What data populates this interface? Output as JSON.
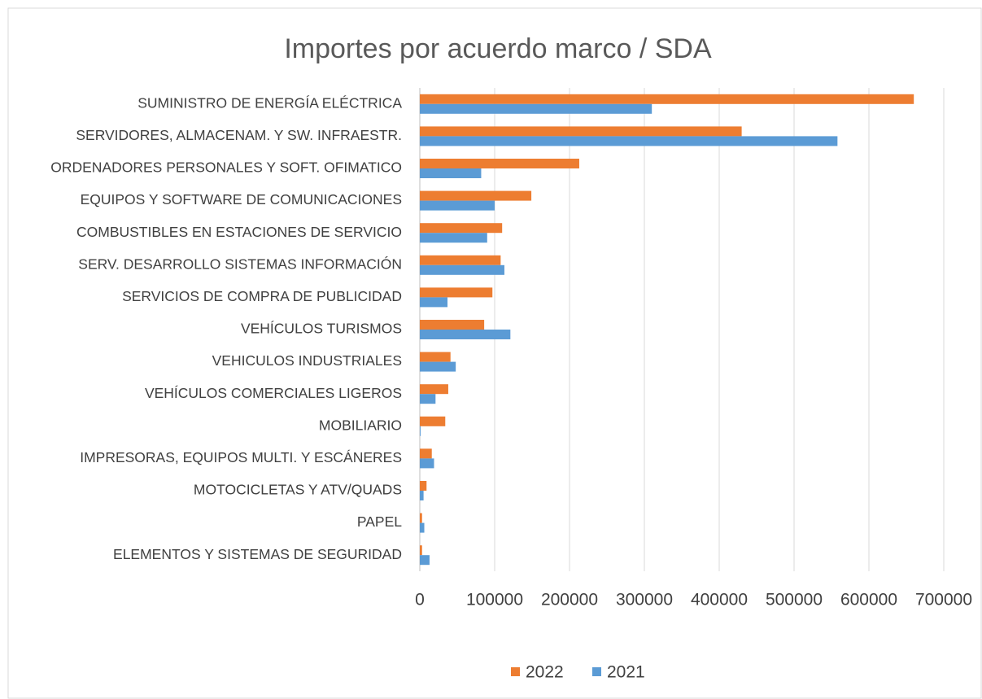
{
  "chart_data": {
    "type": "hbar",
    "title": "Importes por acuerdo marco / SDA",
    "categories": [
      "SUMINISTRO DE ENERGÍA ELÉCTRICA",
      "SERVIDORES, ALMACENAM. Y SW. INFRAESTR.",
      "ORDENADORES PERSONALES Y SOFT. OFIMATICO",
      "EQUIPOS Y SOFTWARE DE COMUNICACIONES",
      "COMBUSTIBLES EN ESTACIONES DE SERVICIO",
      "SERV. DESARROLLO SISTEMAS INFORMACIÓN",
      "SERVICIOS DE COMPRA DE PUBLICIDAD",
      "VEHÍCULOS TURISMOS",
      "VEHICULOS INDUSTRIALES",
      "VEHÍCULOS COMERCIALES LIGEROS",
      "MOBILIARIO",
      "IMPRESORAS, EQUIPOS MULTI. Y ESCÁNERES",
      "MOTOCICLETAS Y ATV/QUADS",
      "PAPEL",
      "ELEMENTOS Y SISTEMAS DE SEGURIDAD"
    ],
    "series": [
      {
        "name": "2022",
        "color": "#ed7d31",
        "values": [
          660000,
          430000,
          213000,
          149000,
          110000,
          108000,
          97000,
          86000,
          41000,
          38000,
          34000,
          16000,
          9000,
          3000,
          3000
        ]
      },
      {
        "name": "2021",
        "color": "#5b9bd5",
        "values": [
          310000,
          558000,
          82000,
          100000,
          90000,
          113000,
          37000,
          121000,
          48000,
          21000,
          1000,
          19000,
          5000,
          6000,
          13000
        ]
      }
    ],
    "xlim": [
      0,
      700000
    ],
    "xticks": [
      0,
      100000,
      200000,
      300000,
      400000,
      500000,
      600000,
      700000
    ],
    "grid": true,
    "legend": "bottom"
  }
}
